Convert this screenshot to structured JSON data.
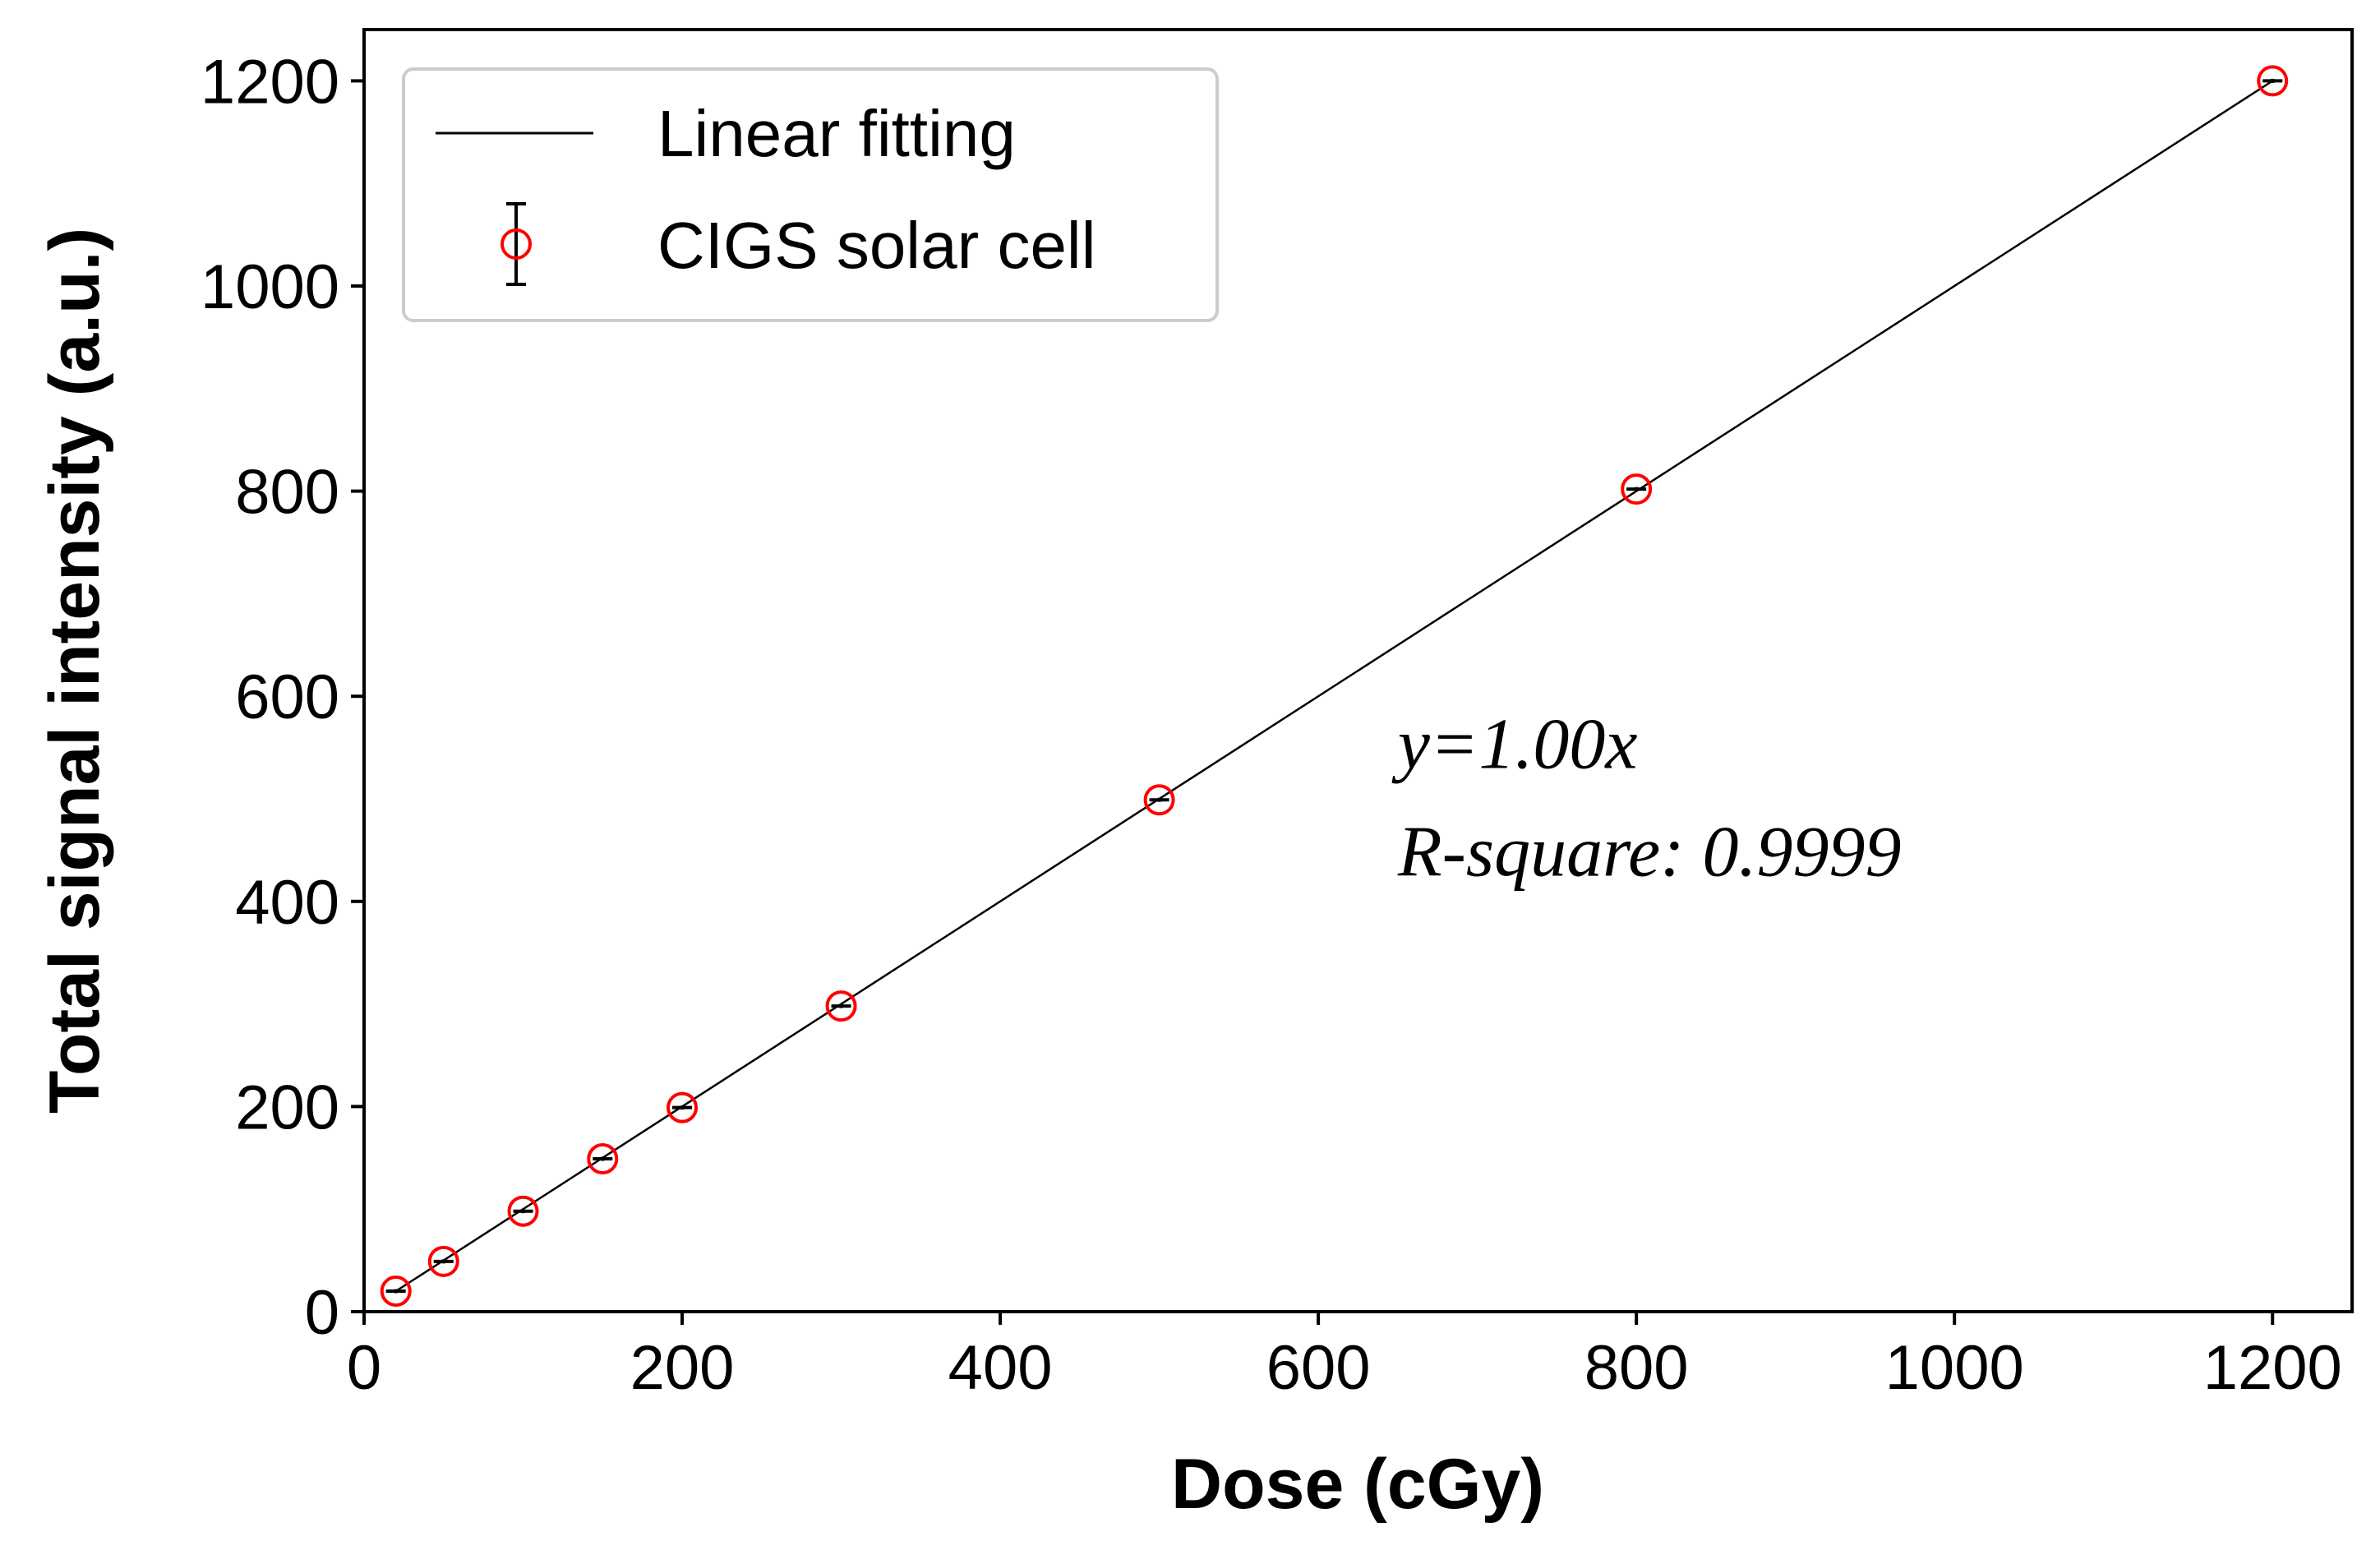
{
  "chart_data": {
    "type": "scatter",
    "title": "",
    "xlabel": "Dose (cGy)",
    "ylabel": "Total signal intensity (a.u.)",
    "xlim": [
      0,
      1250
    ],
    "ylim": [
      0,
      1250
    ],
    "xticks": [
      0,
      200,
      400,
      600,
      800,
      1000,
      1200
    ],
    "yticks": [
      0,
      200,
      400,
      600,
      800,
      1000,
      1200
    ],
    "grid": false,
    "legend_position": "top-left",
    "series": [
      {
        "name": "Linear fitting",
        "kind": "line",
        "color": "#000000",
        "x": [
          20,
          1200
        ],
        "y": [
          20,
          1200
        ]
      },
      {
        "name": "CIGS solar cell",
        "kind": "errorbar-scatter",
        "marker_color": "#ff0000",
        "errorbar_color": "#000000",
        "x": [
          20,
          50,
          100,
          150,
          200,
          300,
          500,
          800,
          1200
        ],
        "y": [
          20,
          49,
          98,
          149,
          199,
          298,
          499,
          802,
          1200
        ],
        "yerr": [
          2,
          2,
          2,
          2,
          2,
          2,
          2,
          2,
          2
        ]
      }
    ],
    "annotations": [
      {
        "text": "y=1.00x",
        "x": 650,
        "y": 530
      },
      {
        "text": "R-square: 0.9999",
        "x": 650,
        "y": 425
      }
    ]
  }
}
